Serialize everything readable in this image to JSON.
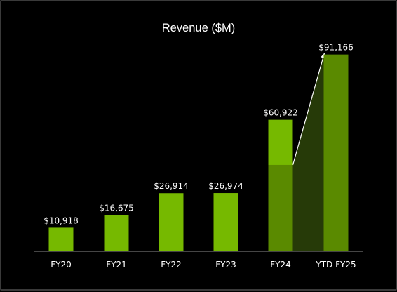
{
  "chart_data": {
    "type": "bar",
    "title": "Revenue ($M)",
    "xlabel": "",
    "ylabel": "",
    "categories": [
      "FY20",
      "FY21",
      "FY22",
      "FY23",
      "FY24",
      "YTD FY25"
    ],
    "values": [
      10918,
      16675,
      26914,
      26974,
      60922,
      91166
    ],
    "data_labels": [
      "$10,918",
      "$16,675",
      "$26,914",
      "$26,974",
      "$60,922",
      "$91,166"
    ],
    "ylim": [
      0,
      93000
    ],
    "grid": false,
    "legend": "none",
    "fy24_dark_portion": 40000,
    "colors": {
      "background": "#000000",
      "bar": "#76b900",
      "bar_dark": "#5a8a00",
      "connector_fill": "#263a08",
      "axis": "#8a8a8a",
      "text": "#ffffff"
    }
  }
}
